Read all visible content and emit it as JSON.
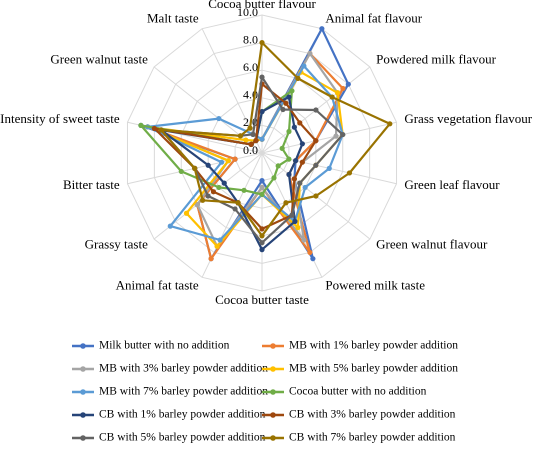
{
  "chart_data": {
    "type": "radar",
    "categories": [
      "Cocoa butter flavour",
      "Animal fat flavour",
      "Powdered milk flavour",
      "Grass vegetation flavour",
      "Green leaf flavour",
      "Green walnut flavour",
      "Powered milk taste",
      "Cocoa butter taste",
      "Animal fat taste",
      "Grassy taste",
      "Bitter taste",
      "Intensity of sweet taste",
      "Green walnut taste",
      "Malt taste"
    ],
    "ylim": [
      0,
      10
    ],
    "yticks": [
      {
        "value": 0,
        "label": "0.0"
      },
      {
        "value": 2,
        "label": "2.0"
      },
      {
        "value": 4,
        "label": "4.0"
      },
      {
        "value": 6,
        "label": "6.0"
      },
      {
        "value": 8,
        "label": "8.0"
      },
      {
        "value": 10,
        "label": "10.0"
      }
    ],
    "grid": true,
    "legend": "bottom",
    "series": [
      {
        "name": "Milk butter with no addition",
        "color": "#4472c4",
        "values": [
          1,
          10,
          8,
          4,
          2.5,
          3,
          8.5,
          2,
          8.5,
          6,
          2,
          9,
          1,
          1
        ]
      },
      {
        "name": "MB with 1% barley powder addition",
        "color": "#ed7d31",
        "values": [
          1,
          8,
          7.5,
          4,
          2.5,
          2.5,
          8,
          2.5,
          8.5,
          6,
          2,
          8.5,
          1,
          1
        ]
      },
      {
        "name": "MB with 3% barley powder addition",
        "color": "#a5a5a5",
        "values": [
          1,
          8,
          7,
          5.5,
          3,
          3,
          7,
          2.5,
          7.5,
          6,
          2.5,
          8.5,
          1,
          1
        ]
      },
      {
        "name": "MB with 5% barley powder addition",
        "color": "#ffc000",
        "values": [
          1,
          6.5,
          7,
          6,
          4,
          3.5,
          6,
          3,
          7.5,
          7,
          2.5,
          8.5,
          1.5,
          1
        ]
      },
      {
        "name": "MB with 7% barley powder addition",
        "color": "#5b9bd5",
        "values": [
          1,
          7,
          6.5,
          6,
          5,
          4,
          5.5,
          3,
          7,
          8.5,
          3,
          8.5,
          4,
          1.5
        ]
      },
      {
        "name": "Cocoa butter with no addition",
        "color": "#70ad47",
        "values": [
          3,
          5,
          2.5,
          1.5,
          2,
          1.5,
          2,
          3,
          3,
          4,
          6,
          9,
          1,
          1
        ]
      },
      {
        "name": "CB with 1% barley powder addition",
        "color": "#264478",
        "values": [
          3,
          4.5,
          3,
          3,
          2.5,
          2.5,
          5.5,
          7,
          4,
          3.5,
          4,
          7.5,
          1,
          1
        ]
      },
      {
        "name": "CB with 3% barley powder addition",
        "color": "#9e480e",
        "values": [
          5,
          4,
          3.5,
          4,
          3,
          3,
          5,
          5.5,
          4,
          4.5,
          5,
          8,
          1,
          1
        ]
      },
      {
        "name": "CB with 5% barley powder addition",
        "color": "#636363",
        "values": [
          5.5,
          3.5,
          5,
          6,
          4,
          3.5,
          5,
          6.5,
          4.5,
          5,
          5,
          7.5,
          2,
          1.5
        ]
      },
      {
        "name": "CB with 7% barley powder addition",
        "color": "#997300",
        "values": [
          8,
          6,
          6.5,
          9.5,
          6.5,
          5,
          4,
          6,
          4,
          5.5,
          5,
          7.5,
          2,
          2
        ]
      }
    ]
  }
}
